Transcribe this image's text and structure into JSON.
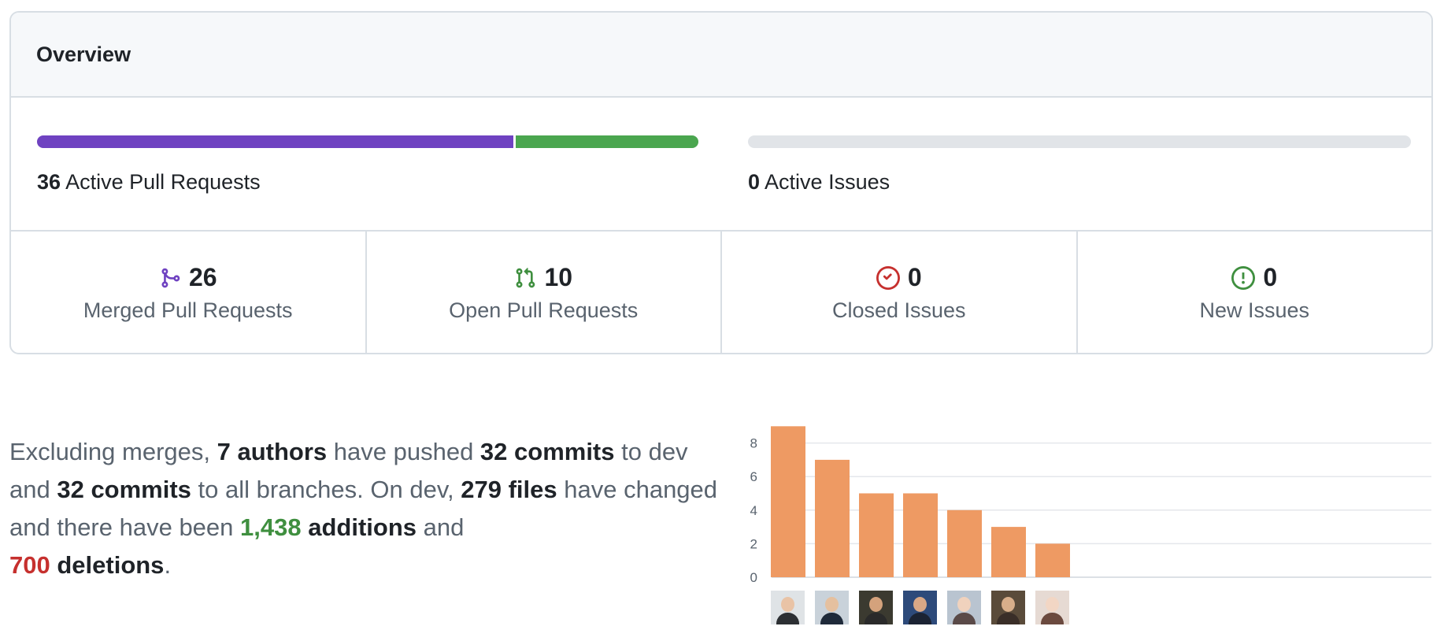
{
  "overview": {
    "title": "Overview",
    "pull_requests": {
      "count": "36",
      "label": "Active Pull Requests",
      "merged_fraction": 0.72,
      "open_fraction": 0.28,
      "merged_color": "#6f42c1",
      "open_color": "#4aa64f"
    },
    "issues": {
      "count": "0",
      "label": "Active Issues",
      "fraction": 0.0
    },
    "stats": [
      {
        "icon": "git-merge-icon",
        "value": "26",
        "label": "Merged Pull Requests",
        "color": "#6f42c1"
      },
      {
        "icon": "git-pull-request-icon",
        "value": "10",
        "label": "Open Pull Requests",
        "color": "#3f8f3f"
      },
      {
        "icon": "issue-closed-icon",
        "value": "0",
        "label": "Closed Issues",
        "color": "#c6302e"
      },
      {
        "icon": "issue-opened-icon",
        "value": "0",
        "label": "New Issues",
        "color": "#3f8f3f"
      }
    ]
  },
  "summary": {
    "t1": "Excluding merges, ",
    "authors": "7 authors",
    "t2": " have pushed ",
    "commits_dev": "32 commits",
    "t3": " to dev and ",
    "commits_all": "32 commits",
    "t4": " to all branches. On dev, ",
    "files": "279 files",
    "t5": " have changed and there have been ",
    "additions_num": "1,438",
    "additions_word": " additions",
    "t6": " and ",
    "deletions_num": "700",
    "deletions_word": " deletions",
    "t7": "."
  },
  "chart_data": {
    "type": "bar",
    "categories": [
      "author 1",
      "author 2",
      "author 3",
      "author 4",
      "author 5",
      "author 6",
      "author 7"
    ],
    "values": [
      9,
      7,
      5,
      5,
      4,
      3,
      2
    ],
    "yticks": [
      0,
      2,
      4,
      6,
      8
    ],
    "ylim": [
      0,
      9
    ],
    "bar_color": "#ee9a63",
    "grid": true,
    "avatar_colors": [
      {
        "bg": "#dfe3e6",
        "skin": "#e9c3a6",
        "shirt": "#2c2f33"
      },
      {
        "bg": "#c9d2da",
        "skin": "#e5c09f",
        "shirt": "#1f2a3a"
      },
      {
        "bg": "#3b3a30",
        "skin": "#d4a27c",
        "shirt": "#2a2a2a"
      },
      {
        "bg": "#2d4a7a",
        "skin": "#d9a886",
        "shirt": "#1b2333"
      },
      {
        "bg": "#b9c4d0",
        "skin": "#f0d2bd",
        "shirt": "#5a4a48"
      },
      {
        "bg": "#5a4b3a",
        "skin": "#d8ae8a",
        "shirt": "#3a2e28"
      },
      {
        "bg": "#e6dad3",
        "skin": "#f2d6c4",
        "shirt": "#6b4a3f"
      }
    ]
  }
}
